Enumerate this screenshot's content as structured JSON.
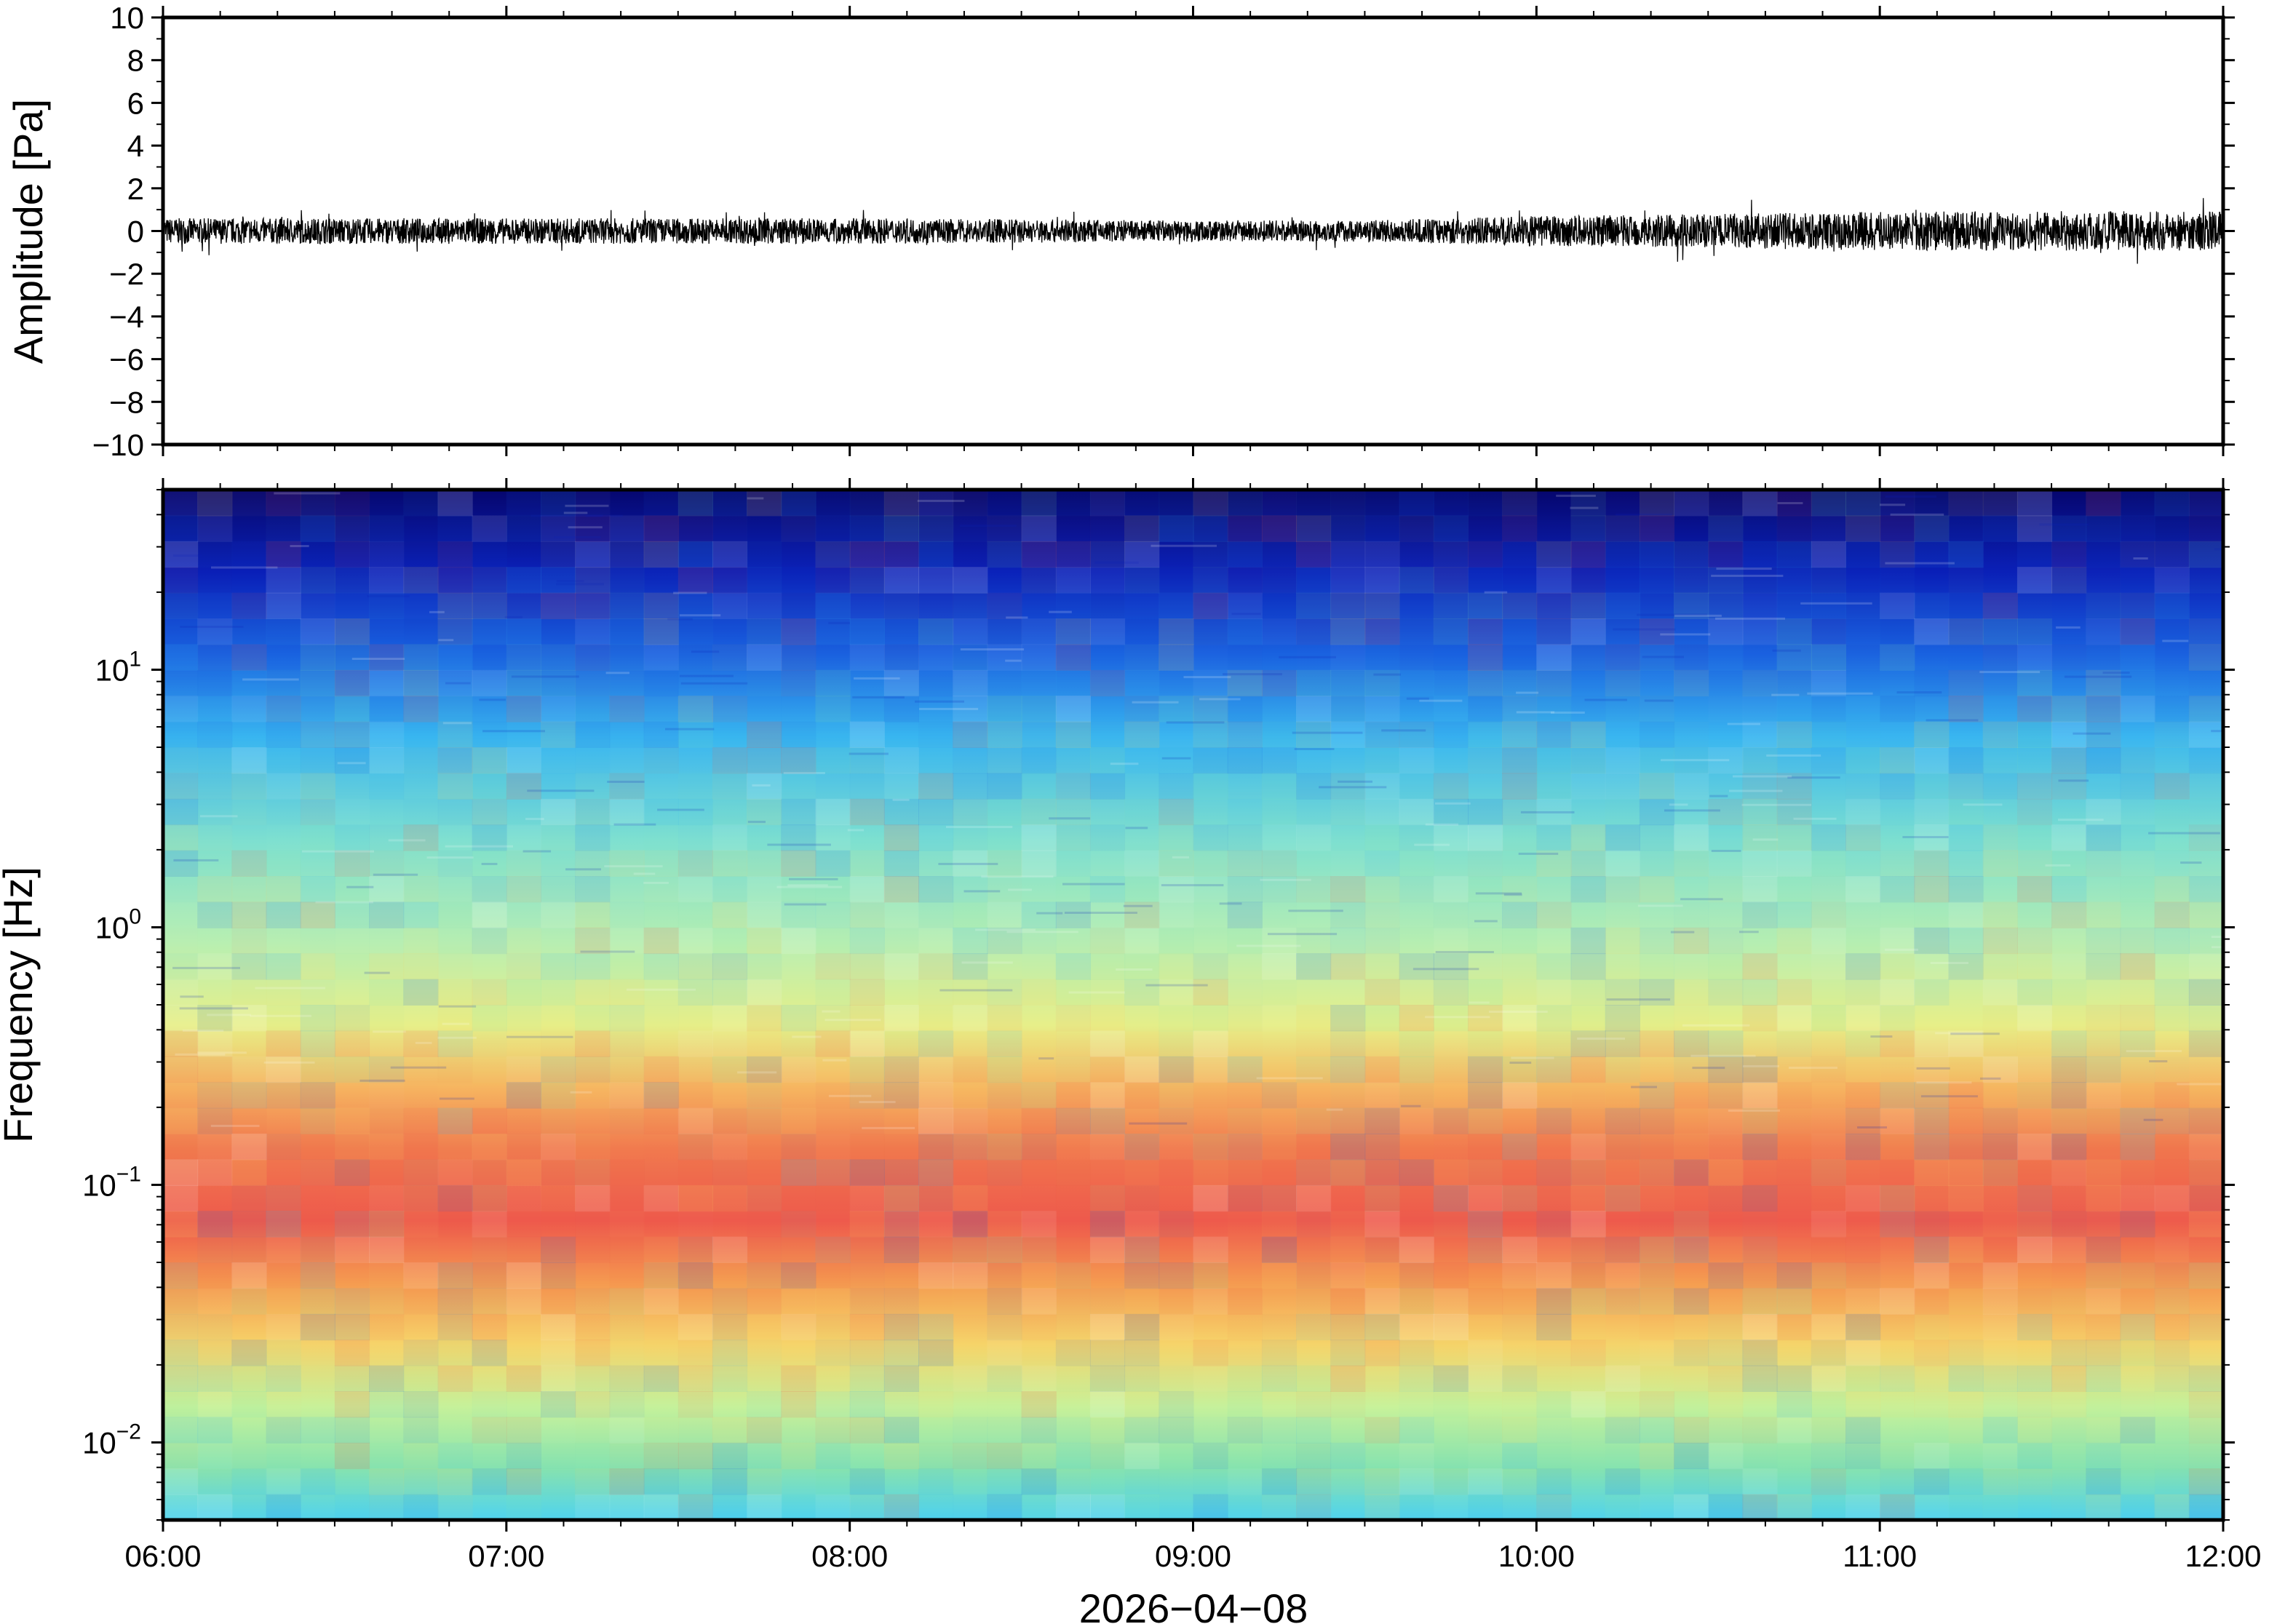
{
  "chart_data": [
    {
      "type": "line",
      "panel": "waveform",
      "title": "",
      "ylabel": "Amplitude [Pa]",
      "xlabel": "",
      "xlim": [
        "06:00",
        "12:00"
      ],
      "ylim": [
        -10,
        10
      ],
      "yticks": [
        10,
        8,
        6,
        4,
        2,
        0,
        -2,
        -4,
        -6,
        -8,
        -10
      ],
      "ytick_labels": [
        "10",
        "8",
        "6",
        "4",
        "2",
        "0",
        "−2",
        "−4",
        "−6",
        "−8",
        "−10"
      ],
      "series_color": "#000000",
      "envelope": {
        "times": [
          "06:00",
          "06:30",
          "07:00",
          "07:30",
          "08:00",
          "08:30",
          "09:00",
          "09:30",
          "10:00",
          "10:30",
          "11:00",
          "11:30",
          "12:00"
        ],
        "amplitude": [
          0.6,
          0.6,
          0.6,
          0.6,
          0.6,
          0.55,
          0.5,
          0.5,
          0.7,
          0.8,
          0.9,
          0.95,
          0.9
        ]
      },
      "grid": false
    },
    {
      "type": "heatmap",
      "panel": "spectrogram",
      "title": "",
      "ylabel": "Frequency [Hz]",
      "xlabel": "2026−04−08",
      "xlim": [
        "06:00",
        "12:00"
      ],
      "ylim": [
        0.005,
        50
      ],
      "yscale": "log",
      "xtick_labels": [
        "06:00",
        "07:00",
        "08:00",
        "09:00",
        "10:00",
        "11:00",
        "12:00"
      ],
      "ytick_labels": [
        {
          "base": "10",
          "exp": "1",
          "value": 10
        },
        {
          "base": "10",
          "exp": "0",
          "value": 1
        },
        {
          "base": "10",
          "exp": "−1",
          "value": 0.1
        },
        {
          "base": "10",
          "exp": "−2",
          "value": 0.01
        }
      ],
      "colormap": "jet",
      "time_columns": 60,
      "relative_power_profile": {
        "frequency_hz": [
          0.005,
          0.01,
          0.02,
          0.04,
          0.07,
          0.1,
          0.2,
          0.4,
          1,
          3,
          10,
          20,
          30,
          50
        ],
        "level": [
          0.38,
          0.45,
          0.6,
          0.78,
          0.86,
          0.85,
          0.78,
          0.66,
          0.5,
          0.42,
          0.3,
          0.18,
          0.08,
          0.04
        ]
      },
      "grid": false
    }
  ]
}
